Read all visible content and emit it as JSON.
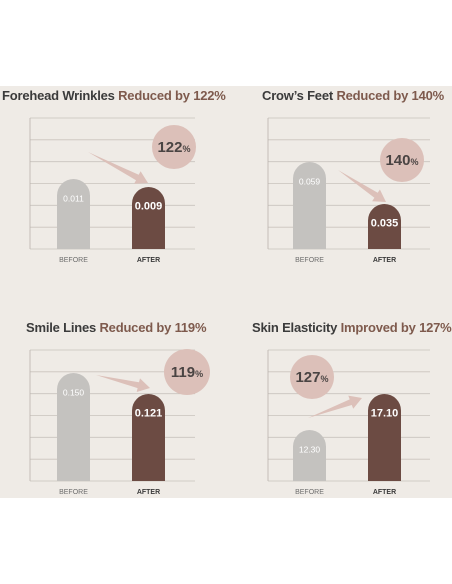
{
  "colors": {
    "background": "#efebe6",
    "before_bar": "#c4c2bf",
    "after_bar": "#6c4b43",
    "badge": "#dcc0b9",
    "arrow": "#dcc0b9",
    "title_main": "#3b3b3b",
    "title_accent": "#7e5a4d"
  },
  "chart_data": [
    {
      "type": "bar",
      "title_main": "Forehead Wrinkles",
      "title_accent": "Reduced by 122%",
      "categories": [
        "BEFORE",
        "AFTER"
      ],
      "values": [
        0.011,
        0.009
      ],
      "value_labels": [
        "0.011",
        "0.009"
      ],
      "badge_number": "122",
      "badge_unit": "%",
      "arrow_direction": "down",
      "grid": true
    },
    {
      "type": "bar",
      "title_main": "Crow’s Feet",
      "title_accent": "Reduced by 140%",
      "categories": [
        "BEFORE",
        "AFTER"
      ],
      "values": [
        0.059,
        0.035
      ],
      "value_labels": [
        "0.059",
        "0.035"
      ],
      "badge_number": "140",
      "badge_unit": "%",
      "arrow_direction": "down",
      "grid": true
    },
    {
      "type": "bar",
      "title_main": "Smile Lines",
      "title_accent": "Reduced by 119%",
      "categories": [
        "BEFORE",
        "AFTER"
      ],
      "values": [
        0.15,
        0.121
      ],
      "value_labels": [
        "0.150",
        "0.121"
      ],
      "badge_number": "119",
      "badge_unit": "%",
      "arrow_direction": "down",
      "grid": true
    },
    {
      "type": "bar",
      "title_main": "Skin Elasticity",
      "title_accent": "Improved by 127%",
      "categories": [
        "BEFORE",
        "AFTER"
      ],
      "values": [
        12.3,
        17.1
      ],
      "value_labels": [
        "12.30",
        "17.10"
      ],
      "badge_number": "127",
      "badge_unit": "%",
      "arrow_direction": "up",
      "grid": true
    }
  ]
}
